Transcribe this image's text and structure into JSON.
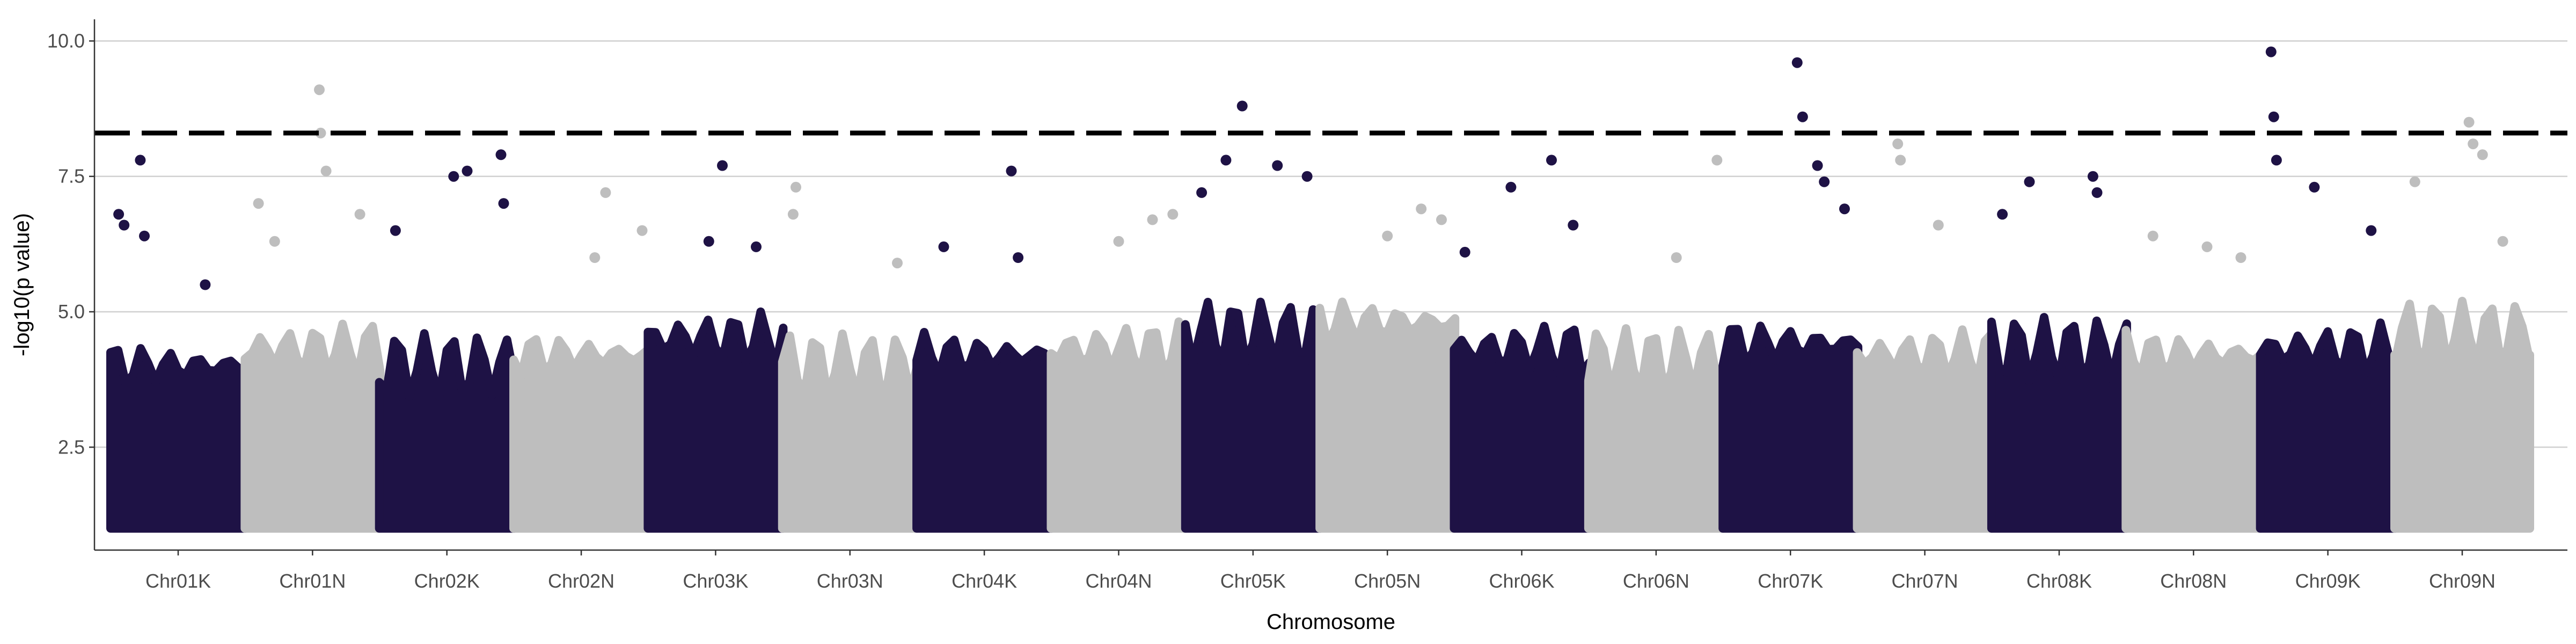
{
  "chart_data": {
    "type": "scatter",
    "subtype": "manhattan",
    "xlabel": "Chromosome",
    "ylabel": "-log10(p value)",
    "ylim": [
      0.6,
      10.4
    ],
    "yticks": [
      "2.5",
      "5.0",
      "7.5",
      "10.0"
    ],
    "grid": "horizontal major lines",
    "legend": "none",
    "threshold": 8.3,
    "colors": {
      "odd": "#1e1245",
      "even": "#bebebe",
      "threshold": "#000000"
    },
    "categories": [
      "Chr01K",
      "Chr01N",
      "Chr02K",
      "Chr02N",
      "Chr03K",
      "Chr03N",
      "Chr04K",
      "Chr04N",
      "Chr05K",
      "Chr05N",
      "Chr06K",
      "Chr06N",
      "Chr07K",
      "Chr07N",
      "Chr08K",
      "Chr08N",
      "Chr09K",
      "Chr09N"
    ],
    "band_tops": [
      4.0,
      4.3,
      4.0,
      4.2,
      4.5,
      4.0,
      4.2,
      4.3,
      4.6,
      4.8,
      4.3,
      4.1,
      4.4,
      4.2,
      4.3,
      4.2,
      4.3,
      4.6
    ],
    "peaks": [
      {
        "chr": "Chr01K",
        "x": 0.06,
        "y": 6.8
      },
      {
        "chr": "Chr01K",
        "x": 0.1,
        "y": 6.6
      },
      {
        "chr": "Chr01K",
        "x": 0.22,
        "y": 7.8
      },
      {
        "chr": "Chr01K",
        "x": 0.25,
        "y": 6.4
      },
      {
        "chr": "Chr01K",
        "x": 0.7,
        "y": 5.5
      },
      {
        "chr": "Chr01N",
        "x": 0.1,
        "y": 7.0
      },
      {
        "chr": "Chr01N",
        "x": 0.22,
        "y": 6.3
      },
      {
        "chr": "Chr01N",
        "x": 0.55,
        "y": 9.1
      },
      {
        "chr": "Chr01N",
        "x": 0.56,
        "y": 8.3
      },
      {
        "chr": "Chr01N",
        "x": 0.6,
        "y": 7.6
      },
      {
        "chr": "Chr01N",
        "x": 0.85,
        "y": 6.8
      },
      {
        "chr": "Chr02K",
        "x": 0.12,
        "y": 6.5
      },
      {
        "chr": "Chr02K",
        "x": 0.55,
        "y": 7.5
      },
      {
        "chr": "Chr02K",
        "x": 0.65,
        "y": 7.6
      },
      {
        "chr": "Chr02K",
        "x": 0.9,
        "y": 7.9
      },
      {
        "chr": "Chr02K",
        "x": 0.92,
        "y": 7.0
      },
      {
        "chr": "Chr02N",
        "x": 0.6,
        "y": 6.0
      },
      {
        "chr": "Chr02N",
        "x": 0.68,
        "y": 7.2
      },
      {
        "chr": "Chr02N",
        "x": 0.95,
        "y": 6.5
      },
      {
        "chr": "Chr03K",
        "x": 0.45,
        "y": 6.3
      },
      {
        "chr": "Chr03K",
        "x": 0.55,
        "y": 7.7
      },
      {
        "chr": "Chr03K",
        "x": 0.8,
        "y": 6.2
      },
      {
        "chr": "Chr03N",
        "x": 0.1,
        "y": 7.3
      },
      {
        "chr": "Chr03N",
        "x": 0.08,
        "y": 6.8
      },
      {
        "chr": "Chr03N",
        "x": 0.85,
        "y": 5.9
      },
      {
        "chr": "Chr04K",
        "x": 0.2,
        "y": 6.2
      },
      {
        "chr": "Chr04K",
        "x": 0.7,
        "y": 7.6
      },
      {
        "chr": "Chr04K",
        "x": 0.75,
        "y": 6.0
      },
      {
        "chr": "Chr04N",
        "x": 0.5,
        "y": 6.3
      },
      {
        "chr": "Chr04N",
        "x": 0.75,
        "y": 6.7
      },
      {
        "chr": "Chr04N",
        "x": 0.9,
        "y": 6.8
      },
      {
        "chr": "Chr05K",
        "x": 0.12,
        "y": 7.2
      },
      {
        "chr": "Chr05K",
        "x": 0.3,
        "y": 7.8
      },
      {
        "chr": "Chr05K",
        "x": 0.42,
        "y": 8.8
      },
      {
        "chr": "Chr05K",
        "x": 0.68,
        "y": 7.7
      },
      {
        "chr": "Chr05K",
        "x": 0.9,
        "y": 7.5
      },
      {
        "chr": "Chr05N",
        "x": 0.5,
        "y": 6.4
      },
      {
        "chr": "Chr05N",
        "x": 0.75,
        "y": 6.9
      },
      {
        "chr": "Chr05N",
        "x": 0.9,
        "y": 6.7
      },
      {
        "chr": "Chr06K",
        "x": 0.08,
        "y": 6.1
      },
      {
        "chr": "Chr06K",
        "x": 0.42,
        "y": 7.3
      },
      {
        "chr": "Chr06K",
        "x": 0.72,
        "y": 7.8
      },
      {
        "chr": "Chr06K",
        "x": 0.88,
        "y": 6.6
      },
      {
        "chr": "Chr06N",
        "x": 0.65,
        "y": 6.0
      },
      {
        "chr": "Chr06N",
        "x": 0.95,
        "y": 7.8
      },
      {
        "chr": "Chr07K",
        "x": 0.55,
        "y": 9.6
      },
      {
        "chr": "Chr07K",
        "x": 0.59,
        "y": 8.6
      },
      {
        "chr": "Chr07K",
        "x": 0.7,
        "y": 7.7
      },
      {
        "chr": "Chr07K",
        "x": 0.75,
        "y": 7.4
      },
      {
        "chr": "Chr07K",
        "x": 0.9,
        "y": 6.9
      },
      {
        "chr": "Chr07N",
        "x": 0.3,
        "y": 8.1
      },
      {
        "chr": "Chr07N",
        "x": 0.32,
        "y": 7.8
      },
      {
        "chr": "Chr07N",
        "x": 0.6,
        "y": 6.6
      },
      {
        "chr": "Chr08K",
        "x": 0.08,
        "y": 6.8
      },
      {
        "chr": "Chr08K",
        "x": 0.28,
        "y": 7.4
      },
      {
        "chr": "Chr08K",
        "x": 0.75,
        "y": 7.5
      },
      {
        "chr": "Chr08K",
        "x": 0.78,
        "y": 7.2
      },
      {
        "chr": "Chr08N",
        "x": 0.2,
        "y": 6.4
      },
      {
        "chr": "Chr08N",
        "x": 0.6,
        "y": 6.2
      },
      {
        "chr": "Chr08N",
        "x": 0.85,
        "y": 6.0
      },
      {
        "chr": "Chr09K",
        "x": 0.08,
        "y": 9.8
      },
      {
        "chr": "Chr09K",
        "x": 0.1,
        "y": 8.6
      },
      {
        "chr": "Chr09K",
        "x": 0.12,
        "y": 7.8
      },
      {
        "chr": "Chr09K",
        "x": 0.4,
        "y": 7.3
      },
      {
        "chr": "Chr09K",
        "x": 0.82,
        "y": 6.5
      },
      {
        "chr": "Chr09N",
        "x": 0.15,
        "y": 7.4
      },
      {
        "chr": "Chr09N",
        "x": 0.55,
        "y": 8.5
      },
      {
        "chr": "Chr09N",
        "x": 0.58,
        "y": 8.1
      },
      {
        "chr": "Chr09N",
        "x": 0.65,
        "y": 7.9
      },
      {
        "chr": "Chr09N",
        "x": 0.8,
        "y": 6.3
      }
    ]
  }
}
